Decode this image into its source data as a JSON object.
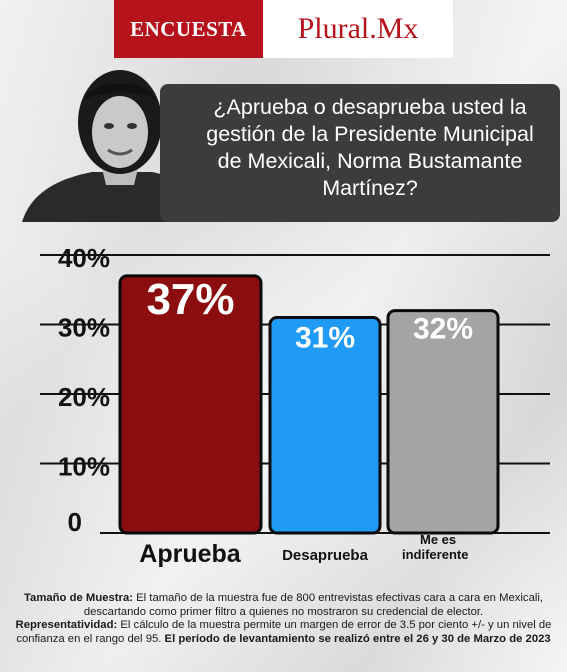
{
  "header": {
    "left_label": "ENCUESTA",
    "right_label": "Plural.Mx"
  },
  "portrait": {
    "description_icon": "portrait-photo"
  },
  "question": "¿Aprueba o desaprueba usted la gestión de la Presidente Municipal de Mexicali, Norma Bustamante Martínez?",
  "chart_data": {
    "type": "bar",
    "categories": [
      "Aprueba",
      "Desaprueba",
      "Me es indiferente"
    ],
    "values": [
      37,
      31,
      32
    ],
    "value_labels": [
      "37%",
      "31%",
      "32%"
    ],
    "colors": [
      "#8b0d0d",
      "#1f9bf5",
      "#a6a4a2"
    ],
    "ytick_labels": [
      "0",
      "10%",
      "20%",
      "30%",
      "40%"
    ],
    "yticks": [
      0,
      10,
      20,
      30,
      40
    ],
    "ylim": [
      0,
      40
    ],
    "grid": true,
    "legend": "none"
  },
  "footnote": {
    "sample_label": "Tamaño de Muestra:",
    "sample_text": " El tamaño de la muestra fue de 800 entrevistas efectivas cara a cara en Mexicali, descartando como primer filtro a quienes no mostraron su credencial de elector.",
    "repr_label": "Representatividad:",
    "repr_text": " El cálculo de la muestra permite un margen de error de 3.5 por ciento +/- y un nivel de confianza en el rango del 95.",
    "period_text": " El período de levantamiento se realizó entre el 26 y 30 de Marzo de 2023"
  }
}
